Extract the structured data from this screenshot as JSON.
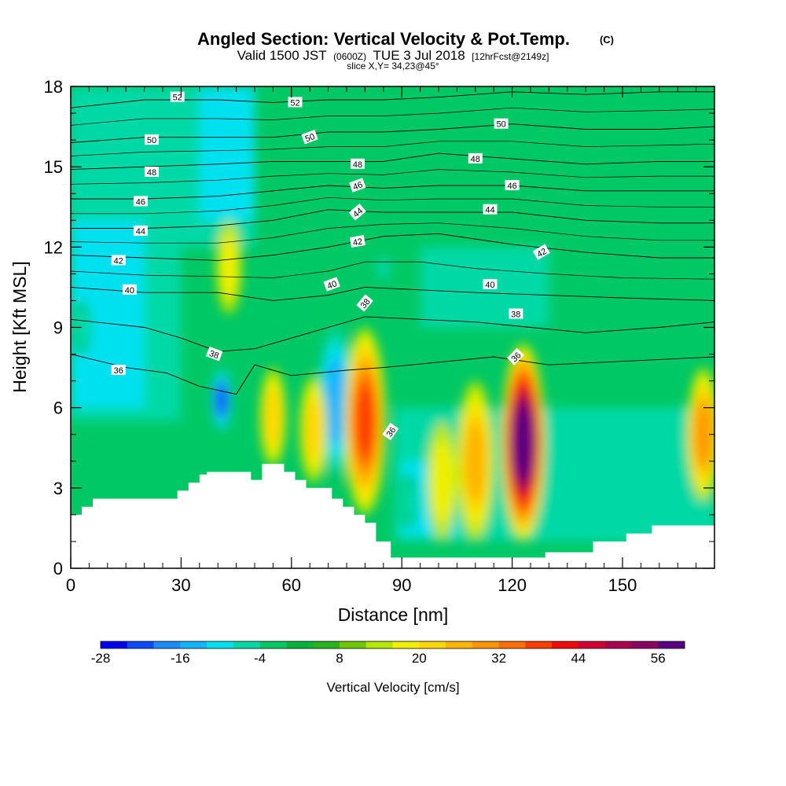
{
  "title": {
    "main": "Angled Section: Vertical Velocity & Pot.Temp.",
    "main_suffix": "(C)",
    "valid_prefix": "Valid 1500 JST",
    "valid_zulu": "(0600Z)",
    "valid_date": "TUE 3 Jul 2018",
    "valid_fcst": "[12hrFcst@2149z]",
    "slice": "slice X,Y= 34,23@45°"
  },
  "chart_data": {
    "type": "heatmap",
    "xlabel": "Distance [nm]",
    "ylabel": "Height [Kft MSL]",
    "xlim": [
      0,
      175
    ],
    "ylim": [
      0,
      18
    ],
    "x_ticks": [
      "0",
      "30",
      "60",
      "90",
      "120",
      "150"
    ],
    "y_ticks": [
      "0",
      "3",
      "6",
      "9",
      "12",
      "15",
      "18"
    ],
    "x_tick_values": [
      0,
      30,
      60,
      90,
      120,
      150
    ],
    "y_tick_values": [
      0,
      3,
      6,
      9,
      12,
      15,
      18
    ],
    "colorbar": {
      "label": "Vertical Velocity [cm/s]",
      "tick_labels": [
        "-28",
        "-16",
        "-4",
        "8",
        "20",
        "32",
        "44",
        "56"
      ],
      "colors": [
        "#0000f0",
        "#0a4bff",
        "#1e8cff",
        "#14b4ff",
        "#00e1f0",
        "#00d9a6",
        "#00c864",
        "#00b43c",
        "#28b41e",
        "#6ec800",
        "#b4e600",
        "#f0f000",
        "#ffd700",
        "#ffb400",
        "#ff9600",
        "#ff6e00",
        "#ff3c00",
        "#f00a0a",
        "#d20032",
        "#aa0050",
        "#8c0064",
        "#5a0082"
      ]
    },
    "updrafts": [
      {
        "x": 55,
        "bottom": 3.8,
        "top": 7.5,
        "peak": 18
      },
      {
        "x": 66,
        "bottom": 3.2,
        "top": 7.2,
        "peak": 18
      },
      {
        "x": 80,
        "bottom": 2,
        "top": 9,
        "peak": 34
      },
      {
        "x": 101,
        "bottom": 1,
        "top": 5.5,
        "peak": 17
      },
      {
        "x": 110,
        "bottom": 1,
        "top": 7,
        "peak": 24
      },
      {
        "x": 123,
        "bottom": 1,
        "top": 8.4,
        "peak": 60
      },
      {
        "x": 172,
        "bottom": 2.5,
        "top": 7.5,
        "peak": 26
      },
      {
        "x": 8,
        "bottom": 2.7,
        "top": 5.3,
        "peak": 8
      },
      {
        "x": 43,
        "bottom": 9.5,
        "top": 13,
        "peak": 16
      }
    ],
    "downdrafts": [
      {
        "x": 41,
        "bottom": 5,
        "top": 7.6,
        "peak": -28
      },
      {
        "x": 72,
        "bottom": 3,
        "top": 9.5,
        "peak": -19
      },
      {
        "x": 3,
        "bottom": 8,
        "top": 10,
        "peak": -12
      },
      {
        "x": 92,
        "bottom": 1.5,
        "top": 3.5,
        "peak": -10
      },
      {
        "x": 85,
        "bottom": 10.6,
        "top": 11.8,
        "peak": -12
      }
    ],
    "terrain_profile": [
      [
        0,
        2.0
      ],
      [
        3,
        2.0
      ],
      [
        3,
        2.3
      ],
      [
        6,
        2.3
      ],
      [
        6,
        2.6
      ],
      [
        29,
        2.6
      ],
      [
        29,
        2.9
      ],
      [
        32,
        2.9
      ],
      [
        32,
        3.2
      ],
      [
        35,
        3.2
      ],
      [
        35,
        3.5
      ],
      [
        37,
        3.5
      ],
      [
        37,
        3.6
      ],
      [
        49,
        3.6
      ],
      [
        49,
        3.3
      ],
      [
        52,
        3.3
      ],
      [
        52,
        3.9
      ],
      [
        58,
        3.9
      ],
      [
        58,
        3.6
      ],
      [
        61,
        3.6
      ],
      [
        61,
        3.3
      ],
      [
        64,
        3.3
      ],
      [
        64,
        3.0
      ],
      [
        71,
        3.0
      ],
      [
        71,
        2.6
      ],
      [
        74,
        2.6
      ],
      [
        74,
        2.3
      ],
      [
        77,
        2.3
      ],
      [
        77,
        2.0
      ],
      [
        80,
        2.0
      ],
      [
        80,
        1.7
      ],
      [
        83,
        1.7
      ],
      [
        83,
        1.0
      ],
      [
        87,
        1.0
      ],
      [
        87,
        0.4
      ],
      [
        129,
        0.4
      ],
      [
        129,
        0.6
      ],
      [
        142,
        0.6
      ],
      [
        142,
        1.0
      ],
      [
        151,
        1.0
      ],
      [
        151,
        1.3
      ],
      [
        158,
        1.3
      ],
      [
        158,
        1.6
      ],
      [
        175,
        1.6
      ]
    ],
    "isentropes": [
      {
        "v": 36,
        "pts": [
          [
            0,
            8.0
          ],
          [
            15,
            7.5
          ],
          [
            26,
            7.3
          ],
          [
            35,
            6.8
          ],
          [
            45,
            6.5
          ],
          [
            50,
            7.6
          ],
          [
            60,
            7.2
          ],
          [
            75,
            7.4
          ],
          [
            85,
            7.5
          ],
          [
            100,
            7.7
          ],
          [
            115,
            7.9
          ],
          [
            130,
            7.6
          ],
          [
            145,
            7.7
          ],
          [
            160,
            7.8
          ],
          [
            175,
            7.9
          ]
        ]
      },
      {
        "v": 38,
        "pts": [
          [
            0,
            9.3
          ],
          [
            20,
            9.0
          ],
          [
            30,
            8.6
          ],
          [
            40,
            8.1
          ],
          [
            50,
            8.2
          ],
          [
            60,
            8.6
          ],
          [
            70,
            9.0
          ],
          [
            80,
            9.4
          ],
          [
            95,
            9.3
          ],
          [
            110,
            9.2
          ],
          [
            125,
            9.0
          ],
          [
            140,
            8.8
          ],
          [
            160,
            9.0
          ],
          [
            175,
            9.2
          ]
        ]
      },
      {
        "v": 40,
        "pts": [
          [
            0,
            10.5
          ],
          [
            20,
            10.3
          ],
          [
            40,
            10.3
          ],
          [
            55,
            10.0
          ],
          [
            70,
            10.2
          ],
          [
            80,
            10.5
          ],
          [
            95,
            10.4
          ],
          [
            110,
            10.3
          ],
          [
            130,
            10.2
          ],
          [
            150,
            10.1
          ],
          [
            175,
            10.0
          ]
        ]
      },
      {
        "v": 42,
        "pts": [
          [
            0,
            11.7
          ],
          [
            20,
            11.6
          ],
          [
            40,
            11.5
          ],
          [
            55,
            11.7
          ],
          [
            70,
            12.0
          ],
          [
            85,
            12.4
          ],
          [
            100,
            12.5
          ],
          [
            120,
            12.1
          ],
          [
            140,
            11.8
          ],
          [
            160,
            11.6
          ],
          [
            175,
            11.6
          ]
        ]
      },
      {
        "v": 44,
        "pts": [
          [
            0,
            12.7
          ],
          [
            20,
            12.7
          ],
          [
            40,
            12.8
          ],
          [
            55,
            13.0
          ],
          [
            70,
            13.4
          ],
          [
            85,
            13.3
          ],
          [
            100,
            13.3
          ],
          [
            120,
            13.3
          ],
          [
            140,
            13.0
          ],
          [
            160,
            12.9
          ],
          [
            175,
            12.9
          ]
        ]
      },
      {
        "v": 46,
        "pts": [
          [
            0,
            13.8
          ],
          [
            20,
            13.8
          ],
          [
            40,
            13.9
          ],
          [
            55,
            14.1
          ],
          [
            70,
            14.3
          ],
          [
            85,
            14.2
          ],
          [
            100,
            14.3
          ],
          [
            120,
            14.3
          ],
          [
            140,
            14.1
          ],
          [
            160,
            14.1
          ],
          [
            175,
            14.1
          ]
        ]
      },
      {
        "v": 48,
        "pts": [
          [
            0,
            14.9
          ],
          [
            20,
            15.0
          ],
          [
            40,
            15.1
          ],
          [
            55,
            15.2
          ],
          [
            70,
            15.2
          ],
          [
            85,
            15.2
          ],
          [
            100,
            15.5
          ],
          [
            120,
            15.3
          ],
          [
            140,
            15.1
          ],
          [
            160,
            15.2
          ],
          [
            175,
            15.2
          ]
        ]
      },
      {
        "v": 50,
        "pts": [
          [
            0,
            15.9
          ],
          [
            20,
            16.1
          ],
          [
            40,
            16.1
          ],
          [
            55,
            16.1
          ],
          [
            70,
            16.3
          ],
          [
            85,
            16.3
          ],
          [
            100,
            16.4
          ],
          [
            120,
            16.6
          ],
          [
            140,
            16.4
          ],
          [
            160,
            16.4
          ],
          [
            175,
            16.5
          ]
        ]
      },
      {
        "v": 52,
        "pts": [
          [
            0,
            17.2
          ],
          [
            20,
            17.5
          ],
          [
            40,
            17.5
          ],
          [
            55,
            17.4
          ],
          [
            70,
            17.5
          ],
          [
            85,
            17.5
          ],
          [
            100,
            17.6
          ],
          [
            120,
            17.8
          ],
          [
            140,
            17.7
          ],
          [
            160,
            17.8
          ],
          [
            175,
            17.8
          ]
        ]
      }
    ],
    "contour_labels": [
      {
        "text": "36",
        "x": 13,
        "y": 7.4
      },
      {
        "text": "38",
        "x": 39,
        "y": 8.0,
        "rot": 20
      },
      {
        "text": "38",
        "x": 80,
        "y": 9.9,
        "rot": -50
      },
      {
        "text": "38",
        "x": 121,
        "y": 9.5
      },
      {
        "text": "36",
        "x": 87,
        "y": 5.1,
        "rot": -55
      },
      {
        "text": "36",
        "x": 121,
        "y": 7.9,
        "rot": -45
      },
      {
        "text": "40",
        "x": 16,
        "y": 10.4
      },
      {
        "text": "40",
        "x": 71,
        "y": 10.6,
        "rot": -20
      },
      {
        "text": "40",
        "x": 114,
        "y": 10.6
      },
      {
        "text": "42",
        "x": 13,
        "y": 11.5
      },
      {
        "text": "42",
        "x": 78,
        "y": 12.2,
        "rot": -10
      },
      {
        "text": "42",
        "x": 128,
        "y": 11.8,
        "rot": -30
      },
      {
        "text": "44",
        "x": 19,
        "y": 12.6
      },
      {
        "text": "44",
        "x": 78,
        "y": 13.3,
        "rot": -40
      },
      {
        "text": "44",
        "x": 114,
        "y": 13.4
      },
      {
        "text": "46",
        "x": 19,
        "y": 13.7
      },
      {
        "text": "46",
        "x": 78,
        "y": 14.3,
        "rot": -20
      },
      {
        "text": "46",
        "x": 120,
        "y": 14.3
      },
      {
        "text": "48",
        "x": 22,
        "y": 14.8
      },
      {
        "text": "48",
        "x": 78,
        "y": 15.1
      },
      {
        "text": "48",
        "x": 110,
        "y": 15.3
      },
      {
        "text": "50",
        "x": 22,
        "y": 16.0
      },
      {
        "text": "50",
        "x": 65,
        "y": 16.1,
        "rot": -20
      },
      {
        "text": "50",
        "x": 117,
        "y": 16.6
      },
      {
        "text": "52",
        "x": 29,
        "y": 17.6
      },
      {
        "text": "52",
        "x": 61,
        "y": 17.4
      }
    ]
  }
}
